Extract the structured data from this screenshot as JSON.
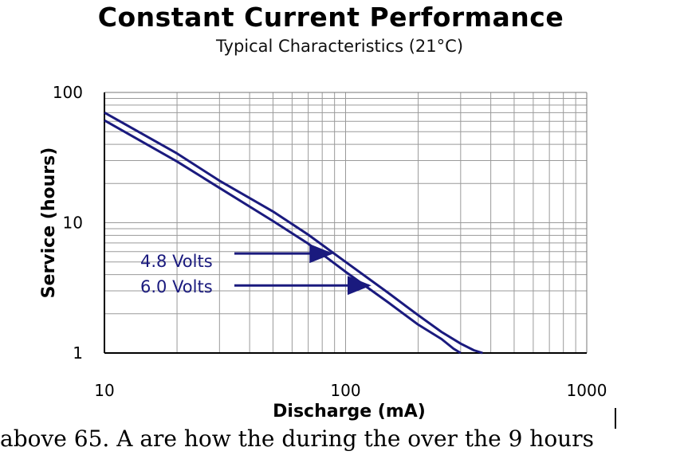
{
  "chart_data": {
    "type": "line",
    "title": "Constant Current Performance",
    "subtitle": "Typical Characteristics (21°C)",
    "xlabel": "Discharge (mA)",
    "ylabel": "Service (hours)",
    "x_scale": "log",
    "y_scale": "log",
    "xlim": [
      10,
      1000
    ],
    "ylim": [
      1,
      100
    ],
    "x_ticks": [
      "10",
      "100",
      "1000"
    ],
    "y_ticks": [
      "1",
      "10",
      "100"
    ],
    "grid": true,
    "series": [
      {
        "name": "4.8 Volts",
        "color": "#1a1a7e",
        "x": [
          10,
          20,
          30,
          50,
          70,
          100,
          150,
          200,
          250,
          300,
          340,
          370
        ],
        "y": [
          70,
          34,
          21,
          12.2,
          8.1,
          5.0,
          2.9,
          1.95,
          1.45,
          1.18,
          1.05,
          1.0
        ]
      },
      {
        "name": "6.0 Volts",
        "color": "#1a1a7e",
        "x": [
          10,
          20,
          30,
          50,
          70,
          100,
          150,
          200,
          250,
          280,
          300
        ],
        "y": [
          61,
          29.5,
          18.5,
          10.3,
          6.9,
          4.2,
          2.45,
          1.65,
          1.28,
          1.08,
          1.0
        ]
      }
    ],
    "annotations": [
      {
        "text": "4.8 Volts",
        "arrow_to": [
          87,
          5.8
        ]
      },
      {
        "text": "6.0 Volts",
        "arrow_to": [
          125,
          3.3
        ]
      }
    ]
  },
  "footer": {
    "text": "above 65. A     are    how    the    during  the    over    the    9  hours"
  }
}
